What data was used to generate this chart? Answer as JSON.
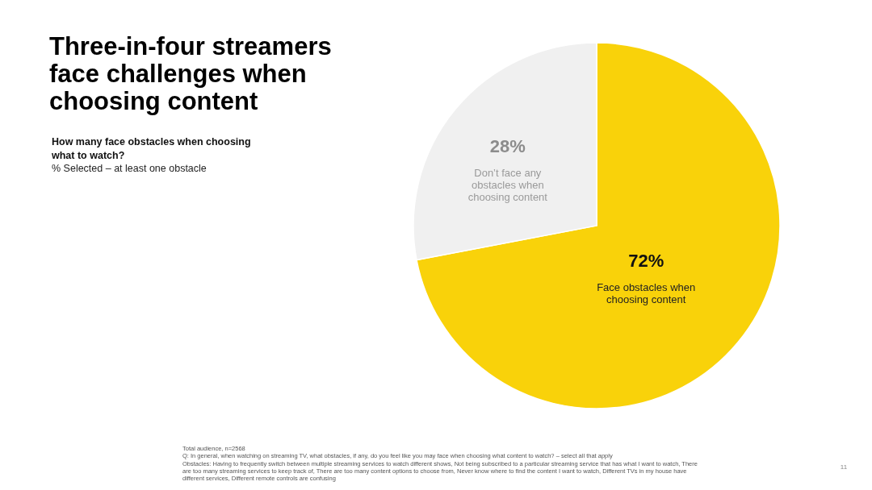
{
  "chart_data": {
    "type": "pie",
    "title": "Three-in-four streamers face challenges when choosing content",
    "subtitle": "How many face obstacles when choosing what to watch?",
    "ylabel": "% Selected – at least one obstacle",
    "categories": [
      "Face obstacles when choosing content",
      "Don’t face any obstacles when choosing content"
    ],
    "values": [
      72,
      28
    ],
    "colors": [
      "#f9d20a",
      "#f0f0f0"
    ],
    "value_labels": [
      "72%",
      "28%"
    ],
    "annotations": [
      "Total audience, n=2568",
      "Q: In general, when watching on streaming TV, what obstacles, if any, do you feel like you may face when choosing what content to watch? – select all that apply",
      "Obstacles: Having to frequently switch between multiple streaming services to watch different shows, Not being subscribed to a particular streaming service that has what I want to watch, There are too many streaming services to keep track of, There are too many content options to choose from, Never know where to find the content I want to watch, Different TVs in my house have different services, Different remote controls are confusing",
      "11"
    ]
  }
}
